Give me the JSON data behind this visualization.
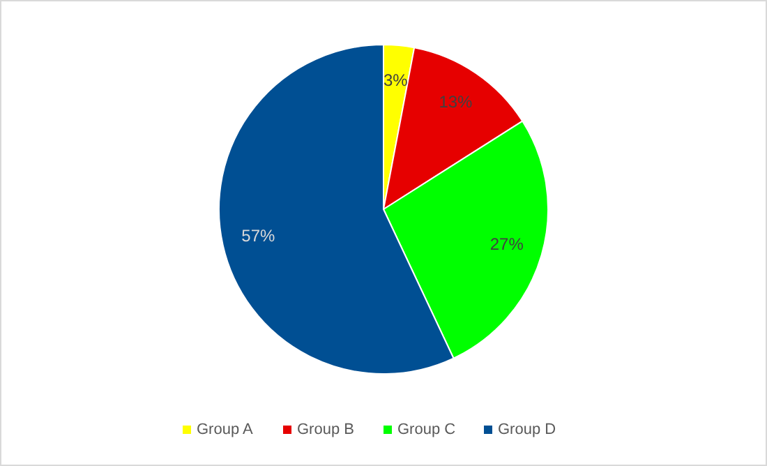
{
  "chart_data": {
    "type": "pie",
    "categories": [
      "Group A",
      "Group B",
      "Group C",
      "Group D"
    ],
    "values": [
      3,
      13,
      27,
      57
    ],
    "colors": [
      "#ffff00",
      "#e60000",
      "#00ff00",
      "#004f93"
    ],
    "value_labels": [
      "3%",
      "13%",
      "27%",
      "57%"
    ],
    "legend": "bottom"
  }
}
